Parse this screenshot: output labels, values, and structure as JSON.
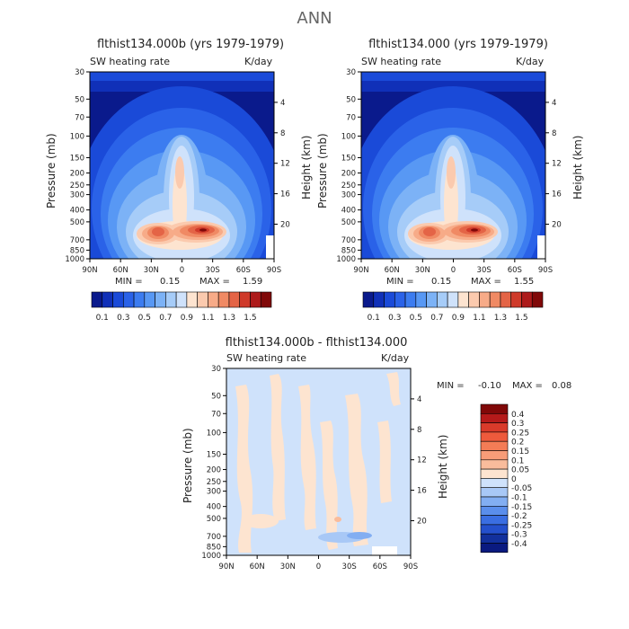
{
  "page": {
    "title": "ANN"
  },
  "chart_data": [
    {
      "type": "heatmap",
      "title": "flthist134.000b (yrs 1979-1979)",
      "variable": "SW heating rate",
      "units": "K/day",
      "xlabel": "",
      "ylabel": "Pressure (mb)",
      "y2label": "Height (km)",
      "x_ticks": [
        "90N",
        "60N",
        "30N",
        "0",
        "30S",
        "60S",
        "90S"
      ],
      "y_ticks": [
        "30",
        "50",
        "70",
        "100",
        "150",
        "200",
        "250",
        "300",
        "400",
        "500",
        "700",
        "850",
        "1000"
      ],
      "y2_ticks": [
        "20",
        "16",
        "12",
        "8",
        "4"
      ],
      "min_label": "MIN =",
      "min": "0.15",
      "max_label": "MAX =",
      "max": "1.59",
      "colorbar_labels": [
        "0.1",
        "0.3",
        "0.5",
        "0.7",
        "0.9",
        "1.1",
        "1.3",
        "1.5"
      ],
      "colorbar_colors": [
        "#0a1a8c",
        "#1030b8",
        "#1a4ad8",
        "#2a62e8",
        "#3c7cf0",
        "#5898f4",
        "#7cb2f6",
        "#a6ccf8",
        "#cfe2fb",
        "#fde4d0",
        "#fbcaae",
        "#f7ab88",
        "#f08a64",
        "#e46446",
        "#cf3a2a",
        "#ad1a1a",
        "#800808"
      ],
      "features": {
        "peaks_near_850mb": [
          "20N",
          "15S"
        ],
        "tropical_plume_max_level_mb": 500
      }
    },
    {
      "type": "heatmap",
      "title": "flthist134.000 (yrs 1979-1979)",
      "variable": "SW heating rate",
      "units": "K/day",
      "xlabel": "",
      "ylabel": "Pressure (mb)",
      "y2label": "Height (km)",
      "x_ticks": [
        "90N",
        "60N",
        "30N",
        "0",
        "30S",
        "60S",
        "90S"
      ],
      "y_ticks": [
        "30",
        "50",
        "70",
        "100",
        "150",
        "200",
        "250",
        "300",
        "400",
        "500",
        "700",
        "850",
        "1000"
      ],
      "y2_ticks": [
        "20",
        "16",
        "12",
        "8",
        "4"
      ],
      "min_label": "MIN =",
      "min": "0.15",
      "max_label": "MAX =",
      "max": "1.55",
      "colorbar_labels": [
        "0.1",
        "0.3",
        "0.5",
        "0.7",
        "0.9",
        "1.1",
        "1.3",
        "1.5"
      ],
      "colorbar_colors": [
        "#0a1a8c",
        "#1030b8",
        "#1a4ad8",
        "#2a62e8",
        "#3c7cf0",
        "#5898f4",
        "#7cb2f6",
        "#a6ccf8",
        "#cfe2fb",
        "#fde4d0",
        "#fbcaae",
        "#f7ab88",
        "#f08a64",
        "#e46446",
        "#cf3a2a",
        "#ad1a1a",
        "#800808"
      ],
      "features": {
        "peaks_near_850mb": [
          "20N",
          "15S"
        ],
        "tropical_plume_max_level_mb": 500
      }
    },
    {
      "type": "heatmap",
      "title": "flthist134.000b - flthist134.000",
      "variable": "SW heating rate",
      "units": "K/day",
      "xlabel": "",
      "ylabel": "Pressure (mb)",
      "y2label": "Height (km)",
      "x_ticks": [
        "90N",
        "60N",
        "30N",
        "0",
        "30S",
        "60S",
        "90S"
      ],
      "y_ticks": [
        "30",
        "50",
        "70",
        "100",
        "150",
        "200",
        "250",
        "300",
        "400",
        "500",
        "700",
        "850",
        "1000"
      ],
      "y2_ticks": [
        "20",
        "16",
        "12",
        "8",
        "4"
      ],
      "min_label": "MIN =",
      "min": "-0.10",
      "max_label": "MAX =",
      "max": "0.08",
      "colorbar_labels": [
        "0.4",
        "0.3",
        "0.25",
        "0.2",
        "0.15",
        "0.1",
        "0.05",
        "0",
        "-0.05",
        "-0.1",
        "-0.15",
        "-0.2",
        "-0.25",
        "-0.3",
        "-0.4"
      ],
      "colorbar_colors": [
        "#800808",
        "#b51a1a",
        "#d93a2a",
        "#ee5a3c",
        "#f47c56",
        "#f79c78",
        "#f9bc9c",
        "#fde4d0",
        "#cfe2fb",
        "#a8c8f6",
        "#82aef2",
        "#5a8eec",
        "#3a6ee2",
        "#2450cc",
        "#12309c",
        "#0a1a80"
      ]
    }
  ]
}
